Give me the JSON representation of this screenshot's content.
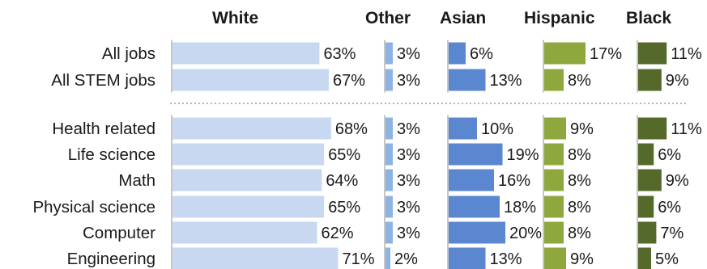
{
  "chart_data": {
    "type": "bar",
    "layout": "small multiples, horizontal bars, one panel per group",
    "groups": [
      "White",
      "Other",
      "Asian",
      "Hispanic",
      "Black"
    ],
    "categories": [
      "All jobs",
      "All STEM jobs",
      "Health related",
      "Life science",
      "Math",
      "Physical science",
      "Computer",
      "Engineering"
    ],
    "separator_after_index": 1,
    "value_unit": "%",
    "series": [
      {
        "name": "White",
        "color": "#c7d8f0",
        "values": [
          63,
          67,
          68,
          65,
          64,
          65,
          62,
          71
        ]
      },
      {
        "name": "Other",
        "color": "#8db3e2",
        "values": [
          3,
          3,
          3,
          3,
          3,
          3,
          3,
          2
        ]
      },
      {
        "name": "Asian",
        "color": "#5b87d0",
        "values": [
          6,
          13,
          10,
          19,
          16,
          18,
          20,
          13
        ]
      },
      {
        "name": "Hispanic",
        "color": "#8fa83e",
        "values": [
          17,
          8,
          9,
          8,
          8,
          8,
          8,
          9
        ]
      },
      {
        "name": "Black",
        "color": "#55692a",
        "values": [
          11,
          9,
          11,
          6,
          9,
          6,
          7,
          5
        ]
      }
    ],
    "axis_line_color": "#b3b3b3",
    "separator_color": "#b3b3b3",
    "grid": false,
    "legend": "none (group names as column headers)"
  }
}
